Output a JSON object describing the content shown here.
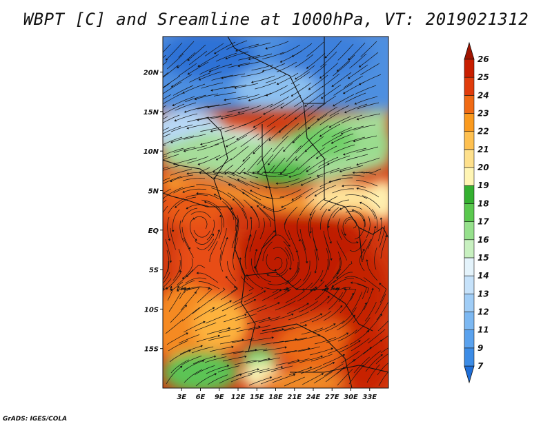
{
  "title": "WBPT [C] and Sreamline at 1000hPa, VT: 2019021312",
  "footer": "GrADS: IGES/COLA",
  "map": {
    "lon_range": [
      0,
      36
    ],
    "lat_range": [
      -20,
      24.5
    ],
    "lon_ticks": [
      "3E",
      "6E",
      "9E",
      "12E",
      "15E",
      "18E",
      "21E",
      "24E",
      "27E",
      "30E",
      "33E"
    ],
    "lat_ticks": [
      "20N",
      "15N",
      "10N",
      "5N",
      "EQ",
      "5S",
      "10S",
      "15S"
    ],
    "field": "wet-bulb potential temperature",
    "overlay": "streamlines"
  },
  "colorbar": {
    "levels": [
      "7",
      "9",
      "11",
      "12",
      "13",
      "14",
      "15",
      "16",
      "17",
      "18",
      "19",
      "20",
      "21",
      "22",
      "23",
      "24",
      "25",
      "26"
    ],
    "colors": [
      "#1e6ed8",
      "#3c8ce6",
      "#5aa2ee",
      "#7cb8f2",
      "#a0cdf6",
      "#c6e2fa",
      "#e4f3fb",
      "#c8f0c0",
      "#96e08c",
      "#5ac84e",
      "#34b030",
      "#fff5b4",
      "#fee08c",
      "#fec050",
      "#fa9a1e",
      "#f06a14",
      "#e03c0c",
      "#c81e00",
      "#a01400"
    ]
  }
}
